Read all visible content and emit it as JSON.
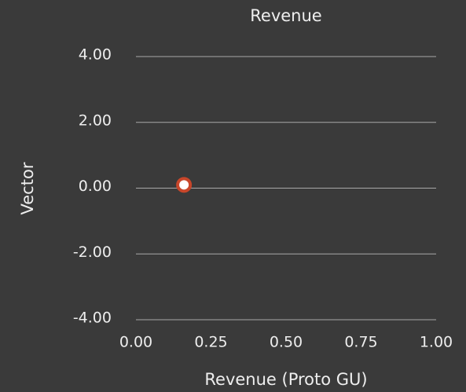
{
  "chart_data": {
    "type": "scatter",
    "title": "Revenue",
    "x_label": "Revenue (Proto GU)",
    "y_label": "Vector",
    "series": [
      {
        "name": "Revenue",
        "color": "#c8462a",
        "x": [
          0.16
        ],
        "values": [
          0.1
        ]
      }
    ],
    "xlim": [
      0,
      1
    ],
    "xticks": [
      {
        "value": 0,
        "label": "0.00"
      },
      {
        "value": 0.25,
        "label": "0.25"
      },
      {
        "value": 0.5,
        "label": "0.50"
      },
      {
        "value": 0.75,
        "label": "0.75"
      },
      {
        "value": 1,
        "label": "1.00"
      }
    ],
    "ylim": [
      -4,
      4
    ],
    "yticks": [
      {
        "value": -4,
        "label": "-4.00"
      },
      {
        "value": -2,
        "label": "-2.00"
      },
      {
        "value": 0,
        "label": "0.00"
      },
      {
        "value": 2,
        "label": "2.00"
      },
      {
        "value": 4,
        "label": "4.00"
      }
    ],
    "grid": true
  }
}
